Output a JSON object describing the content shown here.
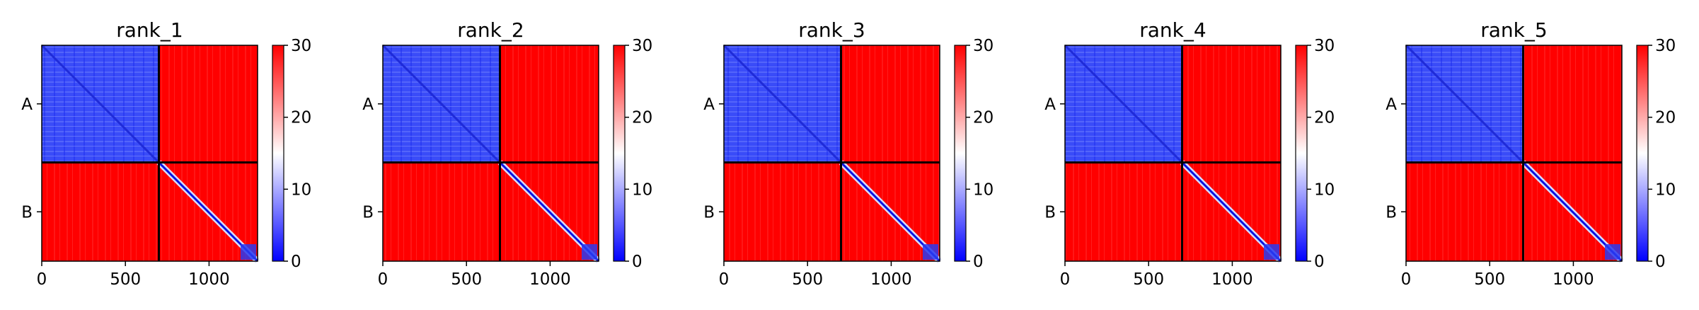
{
  "chart_data": {
    "type": "heatmap",
    "colormap": [
      "#0000ff",
      "#ffffff",
      "#ff0000"
    ],
    "chains": [
      {
        "label": "A",
        "start": 0,
        "end": 700
      },
      {
        "label": "B",
        "start": 700,
        "end": 1290
      }
    ],
    "xlim": [
      0,
      1290
    ],
    "xticks": [
      0,
      500,
      1000
    ],
    "colorbar": {
      "range": [
        0,
        30
      ],
      "ticks": [
        0,
        10,
        20,
        30
      ]
    },
    "panels": [
      {
        "title": "rank_1"
      },
      {
        "title": "rank_2"
      },
      {
        "title": "rank_3"
      },
      {
        "title": "rank_4"
      },
      {
        "title": "rank_5"
      }
    ]
  }
}
